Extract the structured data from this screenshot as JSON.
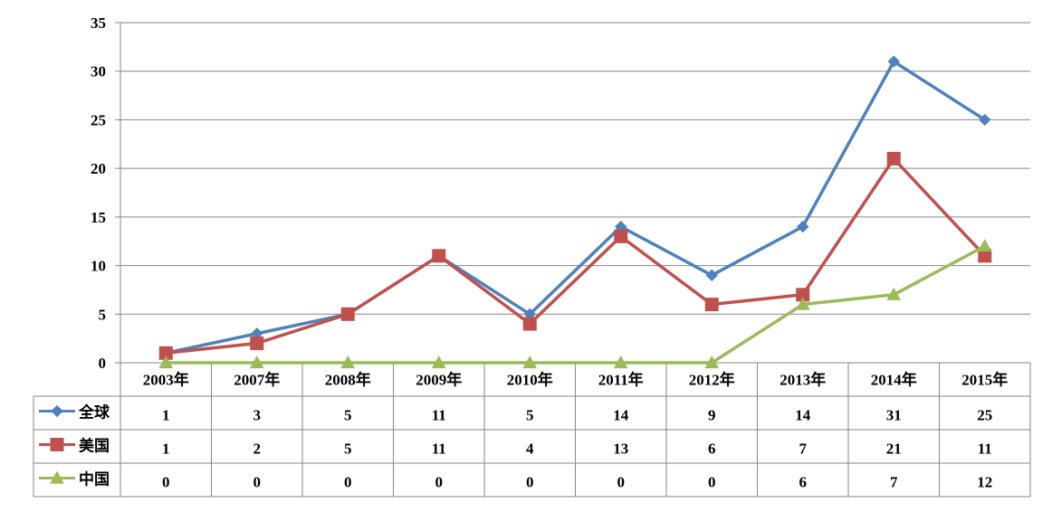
{
  "chart_data": {
    "type": "line",
    "categories": [
      "2003年",
      "2007年",
      "2008年",
      "2009年",
      "2010年",
      "2011年",
      "2012年",
      "2013年",
      "2014年",
      "2015年"
    ],
    "series": [
      {
        "name": "全球",
        "color": "#4F81BD",
        "marker": "diamond",
        "values": [
          1,
          3,
          5,
          11,
          5,
          14,
          9,
          14,
          31,
          25
        ]
      },
      {
        "name": "美国",
        "color": "#C0504D",
        "marker": "square",
        "values": [
          1,
          2,
          5,
          11,
          4,
          13,
          6,
          7,
          21,
          11
        ]
      },
      {
        "name": "中国",
        "color": "#9BBB59",
        "marker": "triangle",
        "values": [
          0,
          0,
          0,
          0,
          0,
          0,
          0,
          6,
          7,
          12
        ]
      }
    ],
    "ylim": [
      0,
      35
    ],
    "yticks": [
      0,
      5,
      10,
      15,
      20,
      25,
      30,
      35
    ],
    "grid": true,
    "legend": "data-table"
  }
}
